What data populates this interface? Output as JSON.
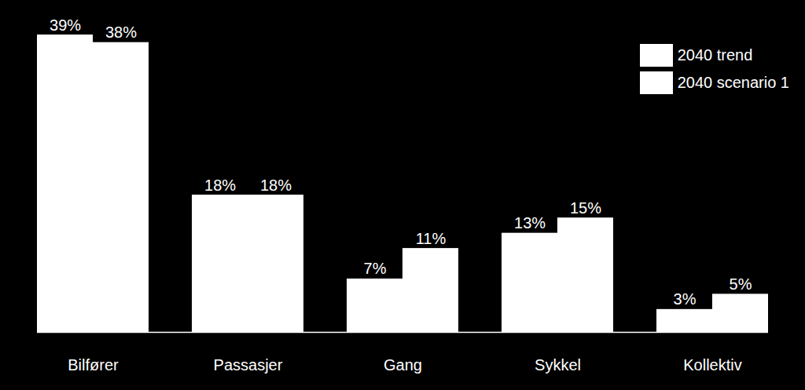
{
  "chart_data": {
    "type": "bar",
    "categories": [
      "Bilfører",
      "Passasjer",
      "Gang",
      "Sykkel",
      "Kollektiv"
    ],
    "series": [
      {
        "name": "2040 trend",
        "color": "#ffffff",
        "values": [
          39,
          18,
          7,
          13,
          3
        ],
        "value_labels": [
          "39%",
          "18%",
          "7%",
          "13%",
          "3%"
        ]
      },
      {
        "name": "2040 scenario 1",
        "color": "#ffffff",
        "values": [
          38,
          18,
          11,
          15,
          5
        ],
        "value_labels": [
          "38%",
          "18%",
          "11%",
          "15%",
          "5%"
        ]
      }
    ],
    "ylim": [
      0,
      39
    ],
    "data_labels": true,
    "tick_labels": "x",
    "legend": "top-right"
  }
}
